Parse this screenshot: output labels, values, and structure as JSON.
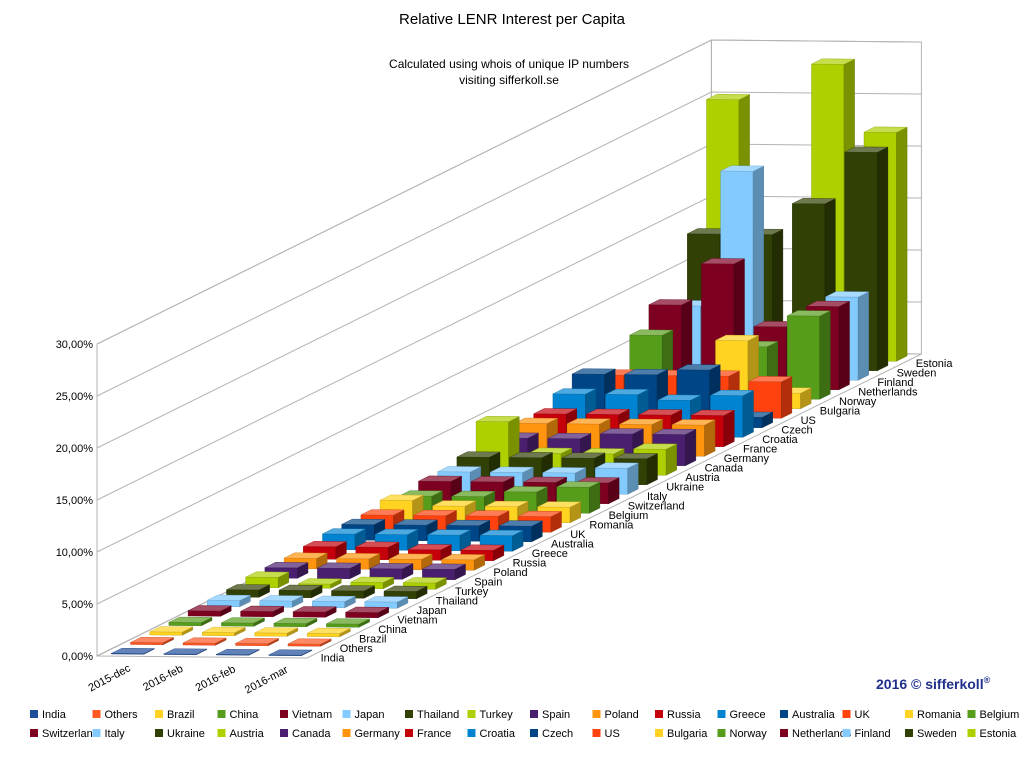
{
  "chart_data": {
    "type": "bar",
    "title": "Relative LENR Interest per Capita",
    "subtitle_lines": [
      "Calculated using whois of unique IP numbers",
      "visiting sifferkoll.se"
    ],
    "credit": "2016 © sifferkoll",
    "credit_mark": "®",
    "x": [
      "2015-dec",
      "2016-feb",
      "2016-feb",
      "2016-mar"
    ],
    "ylim": [
      0,
      30
    ],
    "yticks": [
      "0,00%",
      "5,00%",
      "10,00%",
      "15,00%",
      "20,00%",
      "25,00%",
      "30,00%"
    ],
    "grid": true,
    "legend_position": "bottom",
    "series": [
      {
        "name": "India",
        "color": "#1f4e9b",
        "values": [
          0.05,
          0.05,
          0.05,
          0.05
        ]
      },
      {
        "name": "Others",
        "color": "#ff5722",
        "values": [
          0.2,
          0.2,
          0.2,
          0.2
        ]
      },
      {
        "name": "Brazil",
        "color": "#ffd320",
        "values": [
          0.3,
          0.3,
          0.3,
          0.3
        ]
      },
      {
        "name": "China",
        "color": "#579d1c",
        "values": [
          0.3,
          0.3,
          0.3,
          0.3
        ]
      },
      {
        "name": "Vietnam",
        "color": "#7e0021",
        "values": [
          0.5,
          0.5,
          0.5,
          0.5
        ]
      },
      {
        "name": "Japan",
        "color": "#83caff",
        "values": [
          0.6,
          0.6,
          0.6,
          0.6
        ]
      },
      {
        "name": "Thailand",
        "color": "#314004",
        "values": [
          0.7,
          0.7,
          0.7,
          0.7
        ]
      },
      {
        "name": "Turkey",
        "color": "#aecf00",
        "values": [
          1.0,
          0.4,
          0.6,
          0.6
        ]
      },
      {
        "name": "Spain",
        "color": "#4b1f6f",
        "values": [
          1.0,
          1.0,
          1.0,
          1.0
        ]
      },
      {
        "name": "Poland",
        "color": "#ff950e",
        "values": [
          1.0,
          1.0,
          1.0,
          1.0
        ]
      },
      {
        "name": "Russia",
        "color": "#c5000b",
        "values": [
          1.2,
          1.2,
          1.0,
          1.0
        ]
      },
      {
        "name": "Greece",
        "color": "#0084d1",
        "values": [
          1.5,
          1.5,
          1.5,
          1.5
        ]
      },
      {
        "name": "Australia",
        "color": "#004586",
        "values": [
          1.5,
          1.5,
          1.5,
          1.5
        ]
      },
      {
        "name": "UK",
        "color": "#ff420e",
        "values": [
          1.5,
          1.5,
          1.5,
          1.5
        ]
      },
      {
        "name": "Romania",
        "color": "#ffd320",
        "values": [
          2.0,
          1.5,
          1.5,
          1.5
        ]
      },
      {
        "name": "Belgium",
        "color": "#579d1c",
        "values": [
          1.5,
          1.5,
          2.0,
          2.5
        ]
      },
      {
        "name": "Switzerland",
        "color": "#7e0021",
        "values": [
          2.0,
          2.0,
          2.0,
          2.0
        ]
      },
      {
        "name": "Italy",
        "color": "#83caff",
        "values": [
          2.0,
          2.0,
          2.0,
          2.5
        ]
      },
      {
        "name": "Ukraine",
        "color": "#314004",
        "values": [
          2.5,
          2.5,
          2.5,
          2.5
        ]
      },
      {
        "name": "Austria",
        "color": "#aecf00",
        "values": [
          5.0,
          2.0,
          2.0,
          2.5
        ]
      },
      {
        "name": "Canada",
        "color": "#4b1f6f",
        "values": [
          2.5,
          2.5,
          3.0,
          3.0
        ]
      },
      {
        "name": "Germany",
        "color": "#ff950e",
        "values": [
          3.0,
          3.0,
          3.0,
          3.0
        ]
      },
      {
        "name": "France",
        "color": "#c5000b",
        "values": [
          3.0,
          3.0,
          3.0,
          3.0
        ]
      },
      {
        "name": "Croatia",
        "color": "#0084d1",
        "values": [
          4.0,
          4.0,
          3.5,
          4.0
        ]
      },
      {
        "name": "Czech",
        "color": "#004586",
        "values": [
          5.0,
          5.0,
          5.5,
          1.0
        ]
      },
      {
        "name": "US",
        "color": "#ff420e",
        "values": [
          4.0,
          4.0,
          4.0,
          3.5
        ]
      },
      {
        "name": "Bulgaria",
        "color": "#ffd320",
        "values": [
          1.5,
          1.5,
          6.5,
          1.5
        ]
      },
      {
        "name": "Norway",
        "color": "#579d1c",
        "values": [
          6.0,
          1.5,
          5.0,
          8.0
        ]
      },
      {
        "name": "Netherlands",
        "color": "#7e0021",
        "values": [
          8.0,
          12.0,
          6.0,
          8.0
        ]
      },
      {
        "name": "Finland",
        "color": "#83caff",
        "values": [
          7.0,
          20.0,
          2.0,
          8.0
        ]
      },
      {
        "name": "Sweden",
        "color": "#314004",
        "values": [
          13.0,
          13.0,
          16.0,
          21.0
        ]
      },
      {
        "name": "Estonia",
        "color": "#aecf00",
        "values": [
          25.0,
          1.0,
          28.5,
          22.0
        ]
      }
    ]
  }
}
